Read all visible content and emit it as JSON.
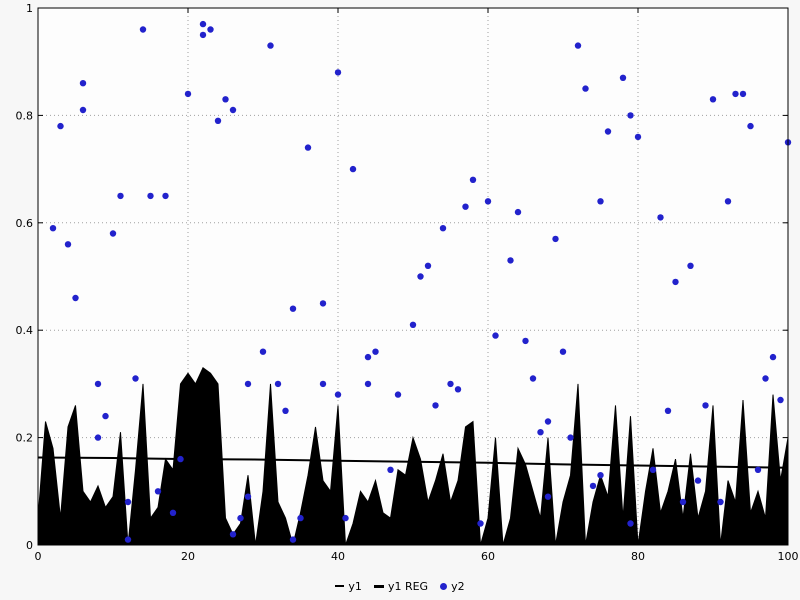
{
  "colors": {
    "plot_background": "#fdfdfd",
    "window_background": "#f7f7f7",
    "grid": "#a0a0a0",
    "axis": "#000000",
    "scatter_blue": "#2222cc",
    "series_black": "#000000"
  },
  "legend": {
    "items": [
      "y1",
      "y1 REG",
      "y2"
    ]
  },
  "chart_data": {
    "type": "mixed",
    "title": "",
    "xlabel": "",
    "ylabel": "",
    "xlim": [
      0,
      100
    ],
    "ylim": [
      0,
      1
    ],
    "x_ticks": [
      0,
      20,
      40,
      60,
      80,
      100
    ],
    "x_tick_labels": [
      "0",
      "20",
      "40",
      "60",
      "80",
      "100"
    ],
    "y_ticks": [
      0,
      0.2,
      0.4,
      0.6,
      0.8,
      1
    ],
    "y_tick_labels": [
      "0",
      "0.2",
      "0.4",
      "0.6",
      "0.8",
      "1"
    ],
    "grid": true,
    "grid_style": "dotted",
    "legend_position": "bottom-center",
    "series": [
      {
        "name": "y1",
        "type": "area",
        "color": "#000000",
        "x": [
          0,
          1,
          2,
          3,
          4,
          5,
          6,
          7,
          8,
          9,
          10,
          11,
          12,
          13,
          14,
          15,
          16,
          17,
          18,
          19,
          20,
          21,
          22,
          23,
          24,
          25,
          26,
          27,
          28,
          29,
          30,
          31,
          32,
          33,
          34,
          35,
          36,
          37,
          38,
          39,
          40,
          41,
          42,
          43,
          44,
          45,
          46,
          47,
          48,
          49,
          50,
          51,
          52,
          53,
          54,
          55,
          56,
          57,
          58,
          59,
          60,
          61,
          62,
          63,
          64,
          65,
          66,
          67,
          68,
          69,
          70,
          71,
          72,
          73,
          74,
          75,
          76,
          77,
          78,
          79,
          80,
          81,
          82,
          83,
          84,
          85,
          86,
          87,
          88,
          89,
          90,
          91,
          92,
          93,
          94,
          95,
          96,
          97,
          98,
          99,
          100
        ],
        "values": [
          0.05,
          0.23,
          0.18,
          0.05,
          0.22,
          0.26,
          0.1,
          0.08,
          0.11,
          0.07,
          0.09,
          0.21,
          0.0,
          0.14,
          0.3,
          0.05,
          0.07,
          0.16,
          0.14,
          0.3,
          0.32,
          0.3,
          0.33,
          0.32,
          0.3,
          0.05,
          0.02,
          0.04,
          0.13,
          0.0,
          0.1,
          0.3,
          0.08,
          0.05,
          0.0,
          0.06,
          0.13,
          0.22,
          0.12,
          0.1,
          0.26,
          0.0,
          0.04,
          0.1,
          0.08,
          0.12,
          0.06,
          0.05,
          0.14,
          0.13,
          0.2,
          0.16,
          0.08,
          0.12,
          0.17,
          0.08,
          0.12,
          0.22,
          0.23,
          0.0,
          0.05,
          0.2,
          0.0,
          0.05,
          0.18,
          0.15,
          0.1,
          0.05,
          0.2,
          0.0,
          0.08,
          0.13,
          0.3,
          0.0,
          0.08,
          0.13,
          0.09,
          0.26,
          0.05,
          0.24,
          0.0,
          0.1,
          0.18,
          0.06,
          0.1,
          0.16,
          0.05,
          0.17,
          0.05,
          0.1,
          0.26,
          0.0,
          0.12,
          0.08,
          0.27,
          0.06,
          0.1,
          0.05,
          0.28,
          0.12,
          0.2
        ]
      },
      {
        "name": "y1 REG",
        "type": "line",
        "color": "#000000",
        "stroke_width": 2,
        "points": [
          [
            0,
            0.163
          ],
          [
            10,
            0.162
          ],
          [
            20,
            0.16
          ],
          [
            30,
            0.159
          ],
          [
            40,
            0.157
          ],
          [
            50,
            0.155
          ],
          [
            60,
            0.153
          ],
          [
            70,
            0.15
          ],
          [
            80,
            0.148
          ],
          [
            90,
            0.146
          ],
          [
            100,
            0.144
          ]
        ]
      },
      {
        "name": "y2",
        "type": "scatter",
        "color": "#2222cc",
        "point_radius": 3.2,
        "points": [
          [
            2,
            0.59
          ],
          [
            3,
            0.78
          ],
          [
            4,
            0.56
          ],
          [
            5,
            0.46
          ],
          [
            6,
            0.86
          ],
          [
            6,
            0.81
          ],
          [
            8,
            0.3
          ],
          [
            8,
            0.2
          ],
          [
            9,
            0.24
          ],
          [
            10,
            0.58
          ],
          [
            11,
            0.65
          ],
          [
            12,
            0.01
          ],
          [
            12,
            0.08
          ],
          [
            13,
            0.31
          ],
          [
            14,
            0.96
          ],
          [
            15,
            0.65
          ],
          [
            16,
            0.1
          ],
          [
            17,
            0.65
          ],
          [
            18,
            0.06
          ],
          [
            19,
            0.16
          ],
          [
            20,
            0.84
          ],
          [
            22,
            0.97
          ],
          [
            22,
            0.95
          ],
          [
            23,
            0.96
          ],
          [
            24,
            0.79
          ],
          [
            25,
            0.83
          ],
          [
            26,
            0.81
          ],
          [
            26,
            0.02
          ],
          [
            27,
            0.05
          ],
          [
            28,
            0.3
          ],
          [
            28,
            0.09
          ],
          [
            30,
            0.36
          ],
          [
            31,
            0.93
          ],
          [
            32,
            0.3
          ],
          [
            33,
            0.25
          ],
          [
            34,
            0.44
          ],
          [
            34,
            0.01
          ],
          [
            35,
            0.05
          ],
          [
            36,
            0.74
          ],
          [
            38,
            0.45
          ],
          [
            38,
            0.3
          ],
          [
            40,
            0.88
          ],
          [
            40,
            0.28
          ],
          [
            41,
            0.05
          ],
          [
            42,
            0.7
          ],
          [
            44,
            0.35
          ],
          [
            44,
            0.3
          ],
          [
            45,
            0.36
          ],
          [
            47,
            0.14
          ],
          [
            48,
            0.28
          ],
          [
            50,
            0.41
          ],
          [
            51,
            0.5
          ],
          [
            52,
            0.52
          ],
          [
            53,
            0.26
          ],
          [
            54,
            0.59
          ],
          [
            55,
            0.3
          ],
          [
            56,
            0.29
          ],
          [
            57,
            0.63
          ],
          [
            58,
            0.68
          ],
          [
            59,
            0.04
          ],
          [
            60,
            0.64
          ],
          [
            61,
            0.39
          ],
          [
            63,
            0.53
          ],
          [
            64,
            0.62
          ],
          [
            65,
            0.38
          ],
          [
            66,
            0.31
          ],
          [
            67,
            0.21
          ],
          [
            68,
            0.23
          ],
          [
            68,
            0.09
          ],
          [
            69,
            0.57
          ],
          [
            70,
            0.36
          ],
          [
            71,
            0.2
          ],
          [
            72,
            0.93
          ],
          [
            73,
            0.85
          ],
          [
            74,
            0.11
          ],
          [
            75,
            0.64
          ],
          [
            75,
            0.13
          ],
          [
            76,
            0.77
          ],
          [
            78,
            0.87
          ],
          [
            79,
            0.8
          ],
          [
            79,
            0.04
          ],
          [
            80,
            0.76
          ],
          [
            82,
            0.14
          ],
          [
            83,
            0.61
          ],
          [
            84,
            0.25
          ],
          [
            85,
            0.49
          ],
          [
            86,
            0.08
          ],
          [
            87,
            0.52
          ],
          [
            88,
            0.12
          ],
          [
            89,
            0.26
          ],
          [
            90,
            0.83
          ],
          [
            91,
            0.08
          ],
          [
            92,
            0.64
          ],
          [
            93,
            0.84
          ],
          [
            94,
            0.84
          ],
          [
            95,
            0.78
          ],
          [
            96,
            0.14
          ],
          [
            97,
            0.31
          ],
          [
            98,
            0.35
          ],
          [
            99,
            0.27
          ],
          [
            100,
            0.75
          ]
        ]
      }
    ]
  }
}
